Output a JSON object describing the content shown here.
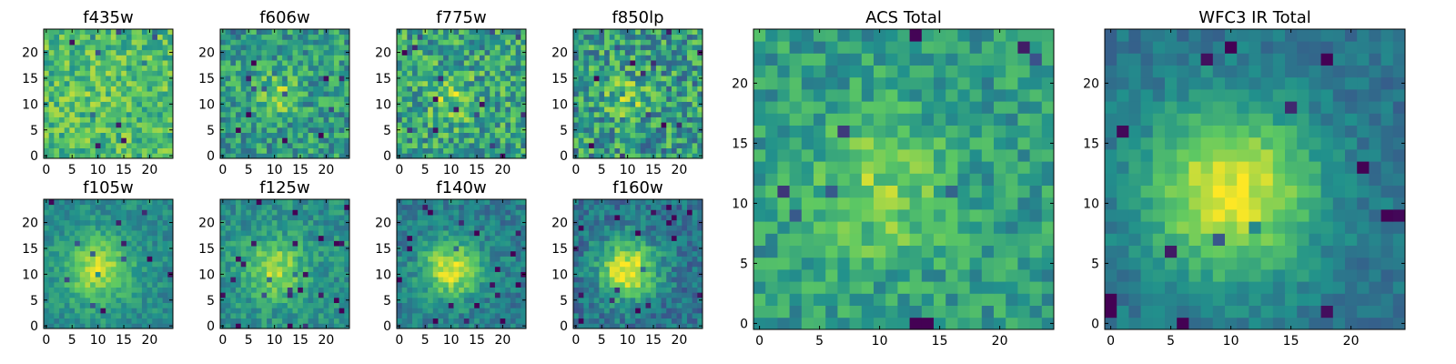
{
  "figure": {
    "colormap": "viridis",
    "colormap_stops": [
      "#440154",
      "#3b528b",
      "#21918c",
      "#5ec962",
      "#fde725"
    ]
  },
  "chart_data": [
    {
      "id": "f435w",
      "type": "heatmap",
      "title": "f435w",
      "size": 25,
      "xlim": [
        0,
        24
      ],
      "ylim": [
        0,
        24
      ],
      "xticks": [
        0,
        5,
        10,
        15,
        20
      ],
      "yticks": [
        0,
        5,
        10,
        15,
        20
      ],
      "peak": [
        11,
        12
      ],
      "sigma": 5,
      "peak_level": 0.08,
      "base_level": 0.68,
      "noise": 0.2,
      "seed": 11
    },
    {
      "id": "f606w",
      "type": "heatmap",
      "title": "f606w",
      "size": 25,
      "xlim": [
        0,
        24
      ],
      "ylim": [
        0,
        24
      ],
      "xticks": [
        0,
        5,
        10,
        15,
        20
      ],
      "yticks": [
        0,
        5,
        10,
        15,
        20
      ],
      "peak": [
        10,
        12
      ],
      "sigma": 3,
      "peak_level": 0.35,
      "base_level": 0.55,
      "noise": 0.22,
      "seed": 23
    },
    {
      "id": "f775w",
      "type": "heatmap",
      "title": "f775w",
      "size": 25,
      "xlim": [
        0,
        24
      ],
      "ylim": [
        0,
        24
      ],
      "xticks": [
        0,
        5,
        10,
        15,
        20
      ],
      "yticks": [
        0,
        5,
        10,
        15,
        20
      ],
      "peak": [
        10,
        11
      ],
      "sigma": 3,
      "peak_level": 0.3,
      "base_level": 0.58,
      "noise": 0.25,
      "seed": 37
    },
    {
      "id": "f850lp",
      "type": "heatmap",
      "title": "f850lp",
      "size": 25,
      "xlim": [
        0,
        24
      ],
      "ylim": [
        0,
        24
      ],
      "xticks": [
        0,
        5,
        10,
        15,
        20
      ],
      "yticks": [
        0,
        5,
        10,
        15,
        20
      ],
      "peak": [
        10,
        11
      ],
      "sigma": 3,
      "peak_level": 0.25,
      "base_level": 0.55,
      "noise": 0.27,
      "seed": 41
    },
    {
      "id": "f105w",
      "type": "heatmap",
      "title": "f105w",
      "size": 25,
      "xlim": [
        0,
        24
      ],
      "ylim": [
        0,
        24
      ],
      "xticks": [
        0,
        5,
        10,
        15,
        20
      ],
      "yticks": [
        0,
        5,
        10,
        15,
        20
      ],
      "peak": [
        10,
        11
      ],
      "sigma": 4.5,
      "peak_level": 0.5,
      "base_level": 0.48,
      "noise": 0.11,
      "seed": 53
    },
    {
      "id": "f125w",
      "type": "heatmap",
      "title": "f125w",
      "size": 25,
      "xlim": [
        0,
        24
      ],
      "ylim": [
        0,
        24
      ],
      "xticks": [
        0,
        5,
        10,
        15,
        20
      ],
      "yticks": [
        0,
        5,
        10,
        15,
        20
      ],
      "peak": [
        10,
        11
      ],
      "sigma": 4,
      "peak_level": 0.45,
      "base_level": 0.5,
      "noise": 0.13,
      "seed": 67
    },
    {
      "id": "f140w",
      "type": "heatmap",
      "title": "f140w",
      "size": 25,
      "xlim": [
        0,
        24
      ],
      "ylim": [
        0,
        24
      ],
      "xticks": [
        0,
        5,
        10,
        15,
        20
      ],
      "yticks": [
        0,
        5,
        10,
        15,
        20
      ],
      "peak": [
        10,
        11
      ],
      "sigma": 4,
      "peak_level": 0.55,
      "base_level": 0.42,
      "noise": 0.13,
      "seed": 71
    },
    {
      "id": "f160w",
      "type": "heatmap",
      "title": "f160w",
      "size": 25,
      "xlim": [
        0,
        24
      ],
      "ylim": [
        0,
        24
      ],
      "xticks": [
        0,
        5,
        10,
        15,
        20
      ],
      "yticks": [
        0,
        5,
        10,
        15,
        20
      ],
      "peak": [
        10,
        11
      ],
      "sigma": 4,
      "peak_level": 0.6,
      "base_level": 0.38,
      "noise": 0.15,
      "seed": 89
    },
    {
      "id": "acs-total",
      "type": "heatmap",
      "title": "ACS Total",
      "size": 25,
      "xlim": [
        0,
        24
      ],
      "ylim": [
        0,
        24
      ],
      "xticks": [
        0,
        5,
        10,
        15,
        20
      ],
      "yticks": [
        0,
        5,
        10,
        15,
        20
      ],
      "peak": [
        10,
        11
      ],
      "sigma": 4,
      "peak_level": 0.35,
      "base_level": 0.55,
      "noise": 0.16,
      "seed": 97
    },
    {
      "id": "wfc3-ir-total",
      "type": "heatmap",
      "title": "WFC3 IR Total",
      "size": 25,
      "xlim": [
        0,
        24
      ],
      "ylim": [
        0,
        24
      ],
      "xticks": [
        0,
        5,
        10,
        15,
        20
      ],
      "yticks": [
        0,
        5,
        10,
        15,
        20
      ],
      "peak": [
        10,
        11
      ],
      "sigma": 5,
      "peak_level": 0.6,
      "base_level": 0.38,
      "noise": 0.09,
      "seed": 101
    }
  ]
}
